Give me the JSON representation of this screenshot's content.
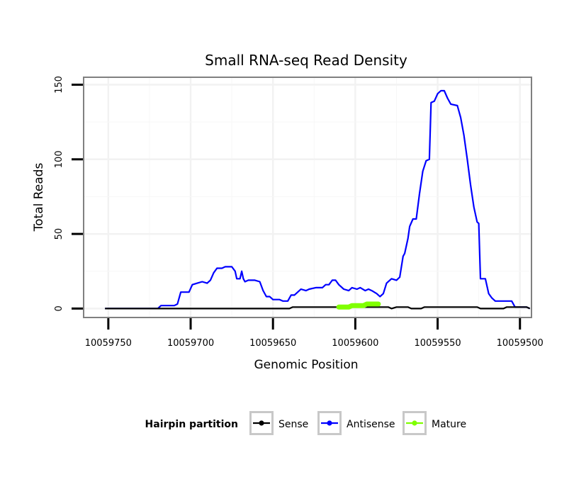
{
  "chart_data": {
    "type": "line",
    "title": "Small RNA-seq Read Density",
    "xlabel": "Genomic Position",
    "ylabel": "Total Reads",
    "xlim": [
      10059765,
      10059493
    ],
    "x_reversed": true,
    "ylim": [
      -6,
      155
    ],
    "xticks": [
      10059750,
      10059700,
      10059650,
      10059600,
      10059550,
      10059500
    ],
    "xtick_labels": [
      "10059750",
      "10059700",
      "10059650",
      "10059600",
      "10059550",
      "10059500"
    ],
    "yticks": [
      0,
      50,
      100,
      150
    ],
    "ytick_labels": [
      "0",
      "50",
      "100",
      "150"
    ],
    "grid": true,
    "legend": {
      "title": "Hairpin partition",
      "position": "bottom",
      "entries": [
        "Sense",
        "Antisense",
        "Mature"
      ]
    },
    "series": [
      {
        "name": "Antisense",
        "color": "#0000ff",
        "points": [
          [
            10059752,
            0
          ],
          [
            10059720,
            0
          ],
          [
            10059718,
            2
          ],
          [
            10059710,
            2
          ],
          [
            10059708,
            3
          ],
          [
            10059706,
            11
          ],
          [
            10059701,
            11
          ],
          [
            10059699,
            16
          ],
          [
            10059696,
            17
          ],
          [
            10059693,
            18
          ],
          [
            10059690,
            17
          ],
          [
            10059688,
            19
          ],
          [
            10059686,
            24
          ],
          [
            10059684,
            27
          ],
          [
            10059681,
            27
          ],
          [
            10059679,
            28
          ],
          [
            10059675,
            28
          ],
          [
            10059673,
            25
          ],
          [
            10059672,
            20
          ],
          [
            10059670,
            20
          ],
          [
            10059669,
            25
          ],
          [
            10059668,
            20
          ],
          [
            10059667,
            18
          ],
          [
            10059665,
            19
          ],
          [
            10059661,
            19
          ],
          [
            10059658,
            18
          ],
          [
            10059656,
            12
          ],
          [
            10059654,
            8
          ],
          [
            10059652,
            8
          ],
          [
            10059650,
            6
          ],
          [
            10059646,
            6
          ],
          [
            10059644,
            5
          ],
          [
            10059641,
            5
          ],
          [
            10059639,
            9
          ],
          [
            10059637,
            9
          ],
          [
            10059635,
            11
          ],
          [
            10059633,
            13
          ],
          [
            10059630,
            12
          ],
          [
            10059628,
            13
          ],
          [
            10059624,
            14
          ],
          [
            10059620,
            14
          ],
          [
            10059618,
            16
          ],
          [
            10059616,
            16
          ],
          [
            10059614,
            19
          ],
          [
            10059612,
            19
          ],
          [
            10059610,
            16
          ],
          [
            10059607,
            13
          ],
          [
            10059604,
            12
          ],
          [
            10059602,
            14
          ],
          [
            10059599,
            13
          ],
          [
            10059597,
            14
          ],
          [
            10059594,
            12
          ],
          [
            10059592,
            13
          ],
          [
            10059590,
            12
          ],
          [
            10059587,
            10
          ],
          [
            10059585,
            8
          ],
          [
            10059583,
            10
          ],
          [
            10059581,
            17
          ],
          [
            10059578,
            20
          ],
          [
            10059575,
            19
          ],
          [
            10059573,
            21
          ],
          [
            10059571,
            35
          ],
          [
            10059570,
            37
          ],
          [
            10059568,
            47
          ],
          [
            10059567,
            55
          ],
          [
            10059565,
            60
          ],
          [
            10059563,
            60
          ],
          [
            10059561,
            77
          ],
          [
            10059559,
            92
          ],
          [
            10059557,
            99
          ],
          [
            10059555,
            100
          ],
          [
            10059554,
            138
          ],
          [
            10059552,
            139
          ],
          [
            10059550,
            144
          ],
          [
            10059548,
            146
          ],
          [
            10059546,
            146
          ],
          [
            10059544,
            141
          ],
          [
            10059542,
            137
          ],
          [
            10059538,
            136
          ],
          [
            10059536,
            128
          ],
          [
            10059534,
            116
          ],
          [
            10059532,
            100
          ],
          [
            10059530,
            83
          ],
          [
            10059528,
            68
          ],
          [
            10059526,
            58
          ],
          [
            10059525,
            57
          ],
          [
            10059524,
            20
          ],
          [
            10059521,
            20
          ],
          [
            10059519,
            10
          ],
          [
            10059517,
            7
          ],
          [
            10059515,
            5
          ],
          [
            10059505,
            5
          ],
          [
            10059503,
            1
          ],
          [
            10059496,
            1
          ],
          [
            10059494,
            0
          ]
        ]
      },
      {
        "name": "Sense",
        "color": "#000000",
        "points": [
          [
            10059752,
            0
          ],
          [
            10059640,
            0
          ],
          [
            10059638,
            1
          ],
          [
            10059580,
            1
          ],
          [
            10059578,
            0
          ],
          [
            10059575,
            1
          ],
          [
            10059568,
            1
          ],
          [
            10059566,
            0
          ],
          [
            10059560,
            0
          ],
          [
            10059558,
            1
          ],
          [
            10059526,
            1
          ],
          [
            10059524,
            0
          ],
          [
            10059510,
            0
          ],
          [
            10059508,
            1
          ],
          [
            10059496,
            1
          ],
          [
            10059494,
            0
          ]
        ]
      },
      {
        "name": "Mature",
        "color": "#7fff00",
        "points": [
          [
            10059610,
            1
          ],
          [
            10059604,
            1
          ],
          [
            10059602,
            2
          ],
          [
            10059595,
            2
          ],
          [
            10059593,
            3
          ],
          [
            10059590,
            3
          ],
          [
            10059588,
            3
          ],
          [
            10059586,
            3
          ]
        ]
      }
    ]
  }
}
